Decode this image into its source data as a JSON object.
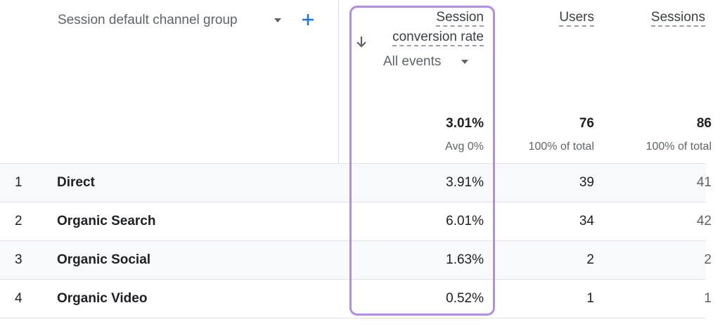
{
  "header": {
    "dimension": "Session default channel group"
  },
  "columns": [
    {
      "title_lines": [
        "Session",
        "conversion rate"
      ],
      "subtitle": "All events",
      "total": "3.01%",
      "total_note": "Avg 0%"
    },
    {
      "title_lines": [
        "Users"
      ],
      "total": "76",
      "total_note": "100% of total"
    },
    {
      "title_lines": [
        "Sessions"
      ],
      "total": "86",
      "total_note": "100% of total"
    }
  ],
  "rows": [
    [
      "1",
      "Direct",
      "3.91%",
      "39",
      "41"
    ],
    [
      "2",
      "Organic Search",
      "6.01%",
      "34",
      "42"
    ],
    [
      "3",
      "Organic Social",
      "1.63%",
      "2",
      "2"
    ],
    [
      "4",
      "Organic Video",
      "0.52%",
      "1",
      "1"
    ]
  ]
}
